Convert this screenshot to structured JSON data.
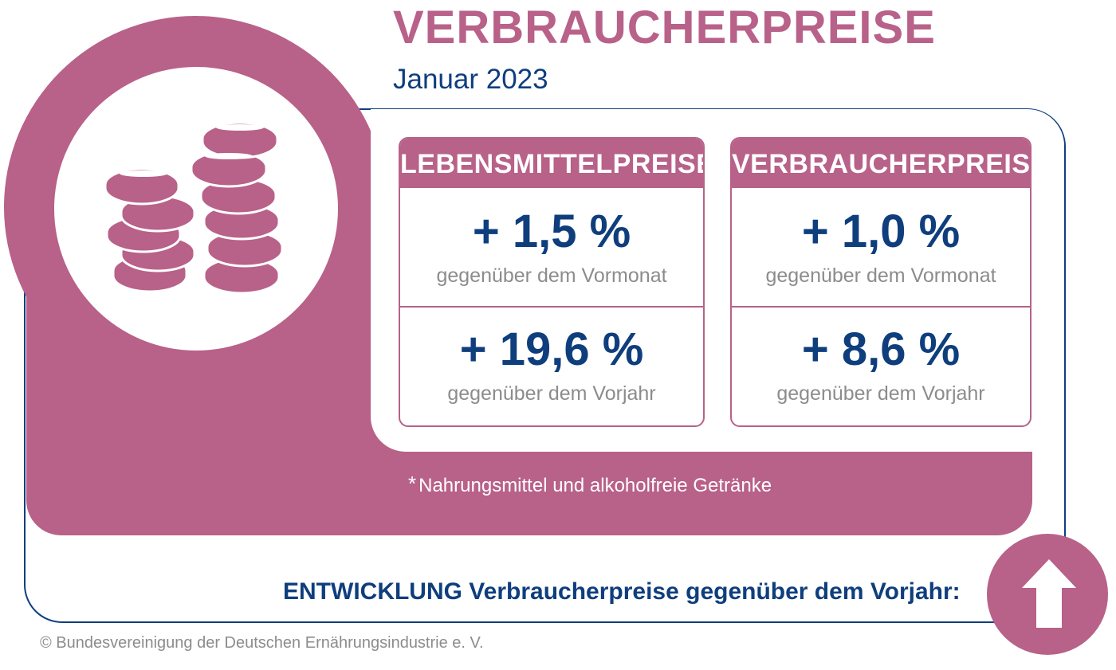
{
  "header": {
    "title": "VERBRAUCHERPREISE",
    "subtitle": "Januar 2023"
  },
  "cards": [
    {
      "title": "LEBENSMITTELPREISE*",
      "monthly_value": "+ 1,5 %",
      "monthly_label": "gegenüber dem Vormonat",
      "yearly_value": "+ 19,6 %",
      "yearly_label": "gegenüber dem Vorjahr"
    },
    {
      "title": "VERBRAUCHERPREISE",
      "monthly_value": "+ 1,0 %",
      "monthly_label": "gegenüber dem Vormonat",
      "yearly_value": "+ 8,6 %",
      "yearly_label": "gegenüber dem Vorjahr"
    }
  ],
  "footnote": {
    "marker": "*",
    "text": "Nahrungsmittel und alkoholfreie Getränke"
  },
  "trend": {
    "label": "ENTWICKLUNG Verbraucherpreise gegenüber dem Vorjahr:",
    "direction_icon": "arrow-up-icon"
  },
  "decor_icon": "coins-icon",
  "copyright": "© Bundesvereinigung der Deutschen Ernährungsindustrie e. V.",
  "colors": {
    "accent_pink": "#b86189",
    "navy": "#0f3e7d",
    "gray_text": "#8c8c8c"
  }
}
